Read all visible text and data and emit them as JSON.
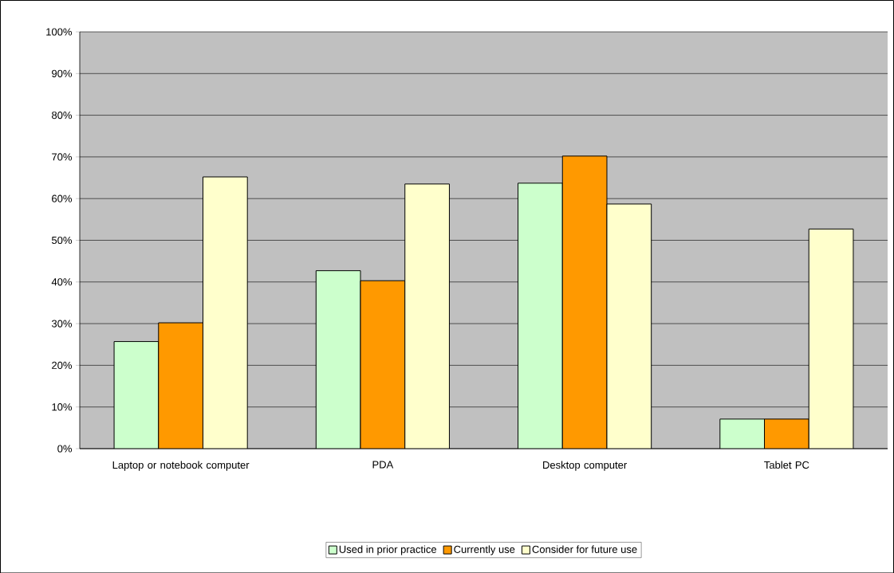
{
  "chart_data": {
    "type": "bar",
    "categories": [
      "Laptop or notebook computer",
      "PDA",
      "Desktop computer",
      "Tablet PC"
    ],
    "series": [
      {
        "name": "Used in prior practice",
        "color": "#ccffcc",
        "values": [
          25.7,
          42.7,
          63.7,
          7.1
        ]
      },
      {
        "name": "Currently use",
        "color": "#ff9900",
        "values": [
          30.2,
          40.3,
          70.2,
          7.1
        ]
      },
      {
        "name": "Consider for future use",
        "color": "#ffffcc",
        "values": [
          65.2,
          63.5,
          58.7,
          52.7
        ]
      }
    ],
    "ylim": [
      0,
      100
    ],
    "yticks": [
      {
        "value": 0,
        "label": "0%"
      },
      {
        "value": 10,
        "label": "10%"
      },
      {
        "value": 20,
        "label": "20%"
      },
      {
        "value": 30,
        "label": "30%"
      },
      {
        "value": 40,
        "label": "40%"
      },
      {
        "value": 50,
        "label": "50%"
      },
      {
        "value": 60,
        "label": "60%"
      },
      {
        "value": 70,
        "label": "70%"
      },
      {
        "value": 80,
        "label": "80%"
      },
      {
        "value": 90,
        "label": "90%"
      },
      {
        "value": 100,
        "label": "100%"
      }
    ],
    "grid": "y",
    "legend": "bottom"
  }
}
